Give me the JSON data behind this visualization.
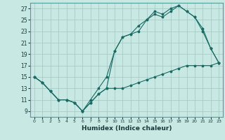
{
  "title": "",
  "xlabel": "Humidex (Indice chaleur)",
  "bg_color": "#c8e8e4",
  "grid_color": "#a0c8c4",
  "line_color": "#1a6b64",
  "xlim": [
    -0.5,
    23.5
  ],
  "ylim": [
    8.0,
    28.0
  ],
  "xticks": [
    0,
    1,
    2,
    3,
    4,
    5,
    6,
    7,
    8,
    9,
    10,
    11,
    12,
    13,
    14,
    15,
    16,
    17,
    18,
    19,
    20,
    21,
    22,
    23
  ],
  "yticks": [
    9,
    11,
    13,
    15,
    17,
    19,
    21,
    23,
    25,
    27
  ],
  "line1_x": [
    0,
    1,
    2,
    3,
    4,
    5,
    6,
    7,
    8,
    9,
    10,
    11,
    12,
    13,
    14,
    15,
    16,
    17,
    18,
    19,
    20,
    21,
    22,
    23
  ],
  "line1_y": [
    15,
    14,
    12.5,
    11,
    11,
    10.5,
    9.0,
    11,
    13,
    15,
    19.5,
    22,
    22.5,
    24,
    25,
    26.5,
    26,
    27,
    27.5,
    26.5,
    25.5,
    23,
    20,
    17.5
  ],
  "line2_x": [
    0,
    1,
    2,
    3,
    4,
    5,
    6,
    7,
    8,
    9,
    10,
    11,
    12,
    13,
    14,
    15,
    16,
    17,
    18,
    19,
    20,
    21,
    22,
    23
  ],
  "line2_y": [
    15,
    14,
    12.5,
    11,
    11,
    10.5,
    9.0,
    10.5,
    12,
    13,
    19.5,
    22,
    22.5,
    23,
    25,
    26,
    25.5,
    26.5,
    27.5,
    26.5,
    25.5,
    23.5,
    20,
    17.5
  ],
  "line3_x": [
    0,
    1,
    2,
    3,
    4,
    5,
    6,
    7,
    8,
    9,
    10,
    11,
    12,
    13,
    14,
    15,
    16,
    17,
    18,
    19,
    20,
    21,
    22,
    23
  ],
  "line3_y": [
    15,
    14,
    12.5,
    11,
    11,
    10.5,
    9.0,
    10.5,
    12,
    13,
    13,
    13,
    13.5,
    14,
    14.5,
    15,
    15.5,
    16,
    16.5,
    17,
    17,
    17,
    17,
    17.5
  ]
}
